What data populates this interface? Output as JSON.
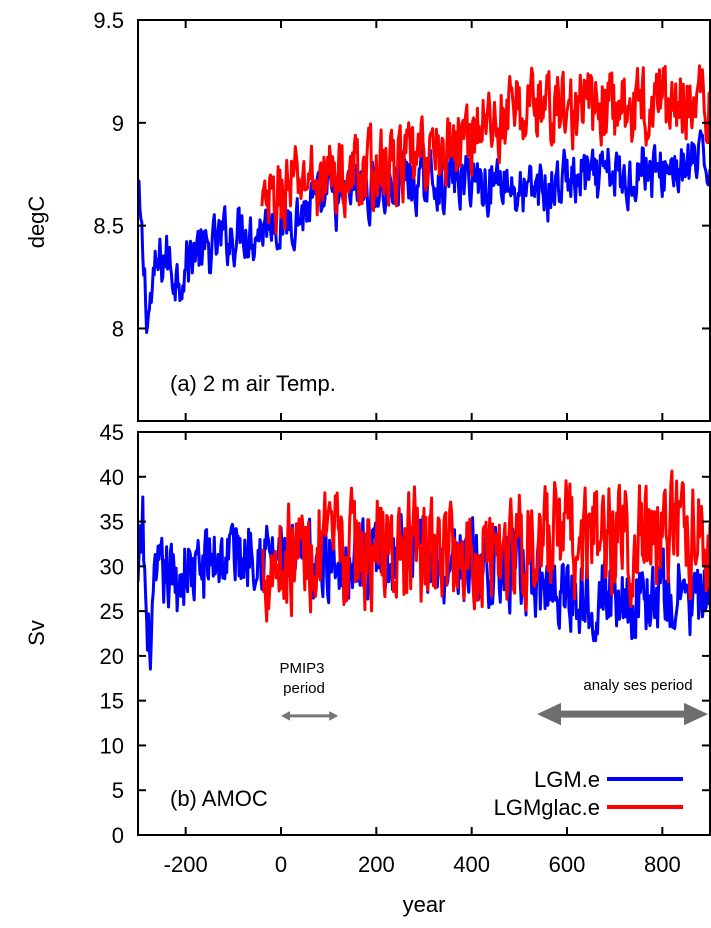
{
  "chart_data": [
    {
      "type": "line",
      "panel_label": "(a) 2 m air Temp.",
      "ylabel": "degC",
      "xlim": [
        -300,
        900
      ],
      "ylim": [
        7.55,
        9.5
      ],
      "yticks": [
        8,
        8.5,
        9,
        9.5
      ],
      "ytick_labels": [
        "8",
        "8.5",
        "9",
        "9.5"
      ],
      "series": [
        {
          "name": "LGM.e",
          "color": "#0000ff",
          "x": [
            -300,
            -280,
            -260,
            -240,
            -220,
            -200,
            -180,
            -160,
            -140,
            -120,
            -100,
            -80,
            -60,
            -40,
            -20,
            0,
            20,
            40,
            60,
            80,
            100,
            120,
            140,
            160,
            180,
            200,
            220,
            240,
            260,
            280,
            300,
            320,
            340,
            360,
            380,
            400,
            420,
            440,
            460,
            480,
            500,
            520,
            540,
            560,
            580,
            600,
            620,
            640,
            660,
            680,
            700,
            720,
            740,
            760,
            780,
            800,
            820,
            840,
            860,
            880,
            900
          ],
          "values": [
            8.65,
            8.05,
            8.3,
            8.35,
            8.25,
            8.3,
            8.4,
            8.35,
            8.4,
            8.45,
            8.45,
            8.5,
            8.45,
            8.5,
            8.55,
            8.5,
            8.55,
            8.55,
            8.6,
            8.6,
            8.65,
            8.6,
            8.65,
            8.7,
            8.65,
            8.7,
            8.65,
            8.7,
            8.75,
            8.7,
            8.7,
            8.75,
            8.7,
            8.75,
            8.7,
            8.75,
            8.7,
            8.7,
            8.75,
            8.7,
            8.65,
            8.65,
            8.7,
            8.65,
            8.7,
            8.75,
            8.7,
            8.75,
            8.7,
            8.75,
            8.75,
            8.7,
            8.75,
            8.8,
            8.75,
            8.75,
            8.8,
            8.75,
            8.8,
            8.8,
            8.8
          ],
          "fluctuation": 0.22
        },
        {
          "name": "LGMglac.e",
          "color": "#ff0000",
          "x": [
            -40,
            -20,
            0,
            20,
            40,
            60,
            80,
            100,
            120,
            140,
            160,
            180,
            200,
            220,
            240,
            260,
            280,
            300,
            320,
            340,
            360,
            380,
            400,
            420,
            440,
            460,
            480,
            500,
            520,
            540,
            560,
            580,
            600,
            620,
            640,
            660,
            680,
            700,
            720,
            740,
            760,
            780,
            800,
            820,
            840,
            860,
            880,
            900
          ],
          "values": [
            8.55,
            8.6,
            8.65,
            8.7,
            8.7,
            8.75,
            8.7,
            8.75,
            8.75,
            8.7,
            8.8,
            8.75,
            8.8,
            8.75,
            8.8,
            8.8,
            8.8,
            8.85,
            8.85,
            8.85,
            8.9,
            8.9,
            8.95,
            9.0,
            9.0,
            9.0,
            9.05,
            9.05,
            9.1,
            9.1,
            9.05,
            9.1,
            9.05,
            9.05,
            9.1,
            9.05,
            9.1,
            9.05,
            9.1,
            9.05,
            9.1,
            9.1,
            9.15,
            9.05,
            9.1,
            9.15,
            9.1,
            9.05
          ],
          "fluctuation": 0.3
        }
      ]
    },
    {
      "type": "line",
      "panel_label": "(b) AMOC",
      "ylabel": "Sv",
      "xlabel": "year",
      "xlim": [
        -300,
        900
      ],
      "ylim": [
        0,
        45
      ],
      "xticks": [
        -200,
        0,
        200,
        400,
        600,
        800
      ],
      "xtick_labels": [
        "-200",
        "0",
        "200",
        "400",
        "600",
        "800"
      ],
      "yticks": [
        0,
        5,
        10,
        15,
        20,
        25,
        30,
        35,
        40,
        45
      ],
      "ytick_labels": [
        "0",
        "5",
        "10",
        "15",
        "20",
        "25",
        "30",
        "35",
        "40",
        "45"
      ],
      "series": [
        {
          "name": "LGM.e",
          "color": "#0000ff",
          "x": [
            -300,
            -290,
            -280,
            -260,
            -240,
            -220,
            -200,
            -180,
            -160,
            -140,
            -120,
            -100,
            -80,
            -60,
            -40,
            -20,
            0,
            20,
            40,
            60,
            80,
            100,
            120,
            140,
            160,
            180,
            200,
            220,
            240,
            260,
            280,
            300,
            320,
            340,
            360,
            380,
            400,
            420,
            440,
            460,
            480,
            500,
            520,
            540,
            560,
            580,
            600,
            620,
            640,
            660,
            680,
            700,
            720,
            740,
            760,
            780,
            800,
            820,
            840,
            860,
            880,
            900
          ],
          "values": [
            27,
            35,
            20,
            28,
            29,
            28,
            30,
            29,
            30,
            31,
            31,
            32,
            31,
            33,
            32,
            31,
            31,
            30,
            30,
            31,
            30,
            31,
            31,
            30,
            31,
            31,
            32,
            31,
            31,
            32,
            31,
            31,
            31,
            30,
            31,
            30,
            31,
            30,
            30,
            30,
            29,
            29,
            29,
            28,
            28,
            28,
            27,
            27,
            27,
            27,
            27,
            27,
            27,
            26,
            27,
            26,
            27,
            26,
            27,
            26,
            26,
            26
          ],
          "fluctuation": 7
        },
        {
          "name": "LGMglac.e",
          "color": "#ff0000",
          "x": [
            -40,
            -20,
            0,
            20,
            40,
            60,
            80,
            100,
            120,
            140,
            160,
            180,
            200,
            220,
            240,
            260,
            280,
            300,
            320,
            340,
            360,
            380,
            400,
            420,
            440,
            460,
            480,
            500,
            520,
            540,
            560,
            580,
            600,
            620,
            640,
            660,
            680,
            700,
            720,
            740,
            760,
            780,
            800,
            820,
            840,
            860,
            880,
            900
          ],
          "values": [
            30,
            31,
            31,
            31,
            32,
            31,
            32,
            31,
            32,
            31,
            32,
            31,
            32,
            32,
            31,
            32,
            32,
            31,
            32,
            31,
            32,
            31,
            32,
            31,
            33,
            32,
            32,
            33,
            32,
            33,
            32,
            33,
            33,
            32,
            33,
            34,
            33,
            33,
            34,
            33,
            34,
            33,
            34,
            33,
            34,
            33,
            33,
            32
          ],
          "fluctuation": 10
        }
      ],
      "annotations": [
        {
          "text": "PMIP3",
          "text2": "period",
          "x_from": 0,
          "x_to": 120
        },
        {
          "text": "analy ses period",
          "x_from": 600,
          "x_to": 900
        }
      ],
      "legend": {
        "placement": "bottom-right",
        "entries": [
          "LGM.e",
          "LGMglac.e"
        ]
      }
    }
  ]
}
